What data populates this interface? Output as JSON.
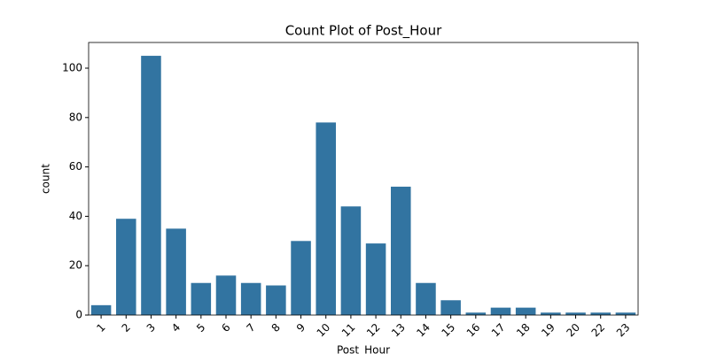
{
  "chart_data": {
    "type": "bar",
    "title": "Count Plot of Post_Hour",
    "xlabel": "Post_Hour",
    "ylabel": "count",
    "categories": [
      "1",
      "2",
      "3",
      "4",
      "5",
      "6",
      "7",
      "8",
      "9",
      "10",
      "11",
      "12",
      "13",
      "14",
      "15",
      "16",
      "17",
      "18",
      "19",
      "20",
      "22",
      "23"
    ],
    "values": [
      4,
      39,
      105,
      35,
      13,
      16,
      13,
      12,
      30,
      78,
      44,
      29,
      52,
      13,
      6,
      1,
      3,
      3,
      1,
      1,
      1,
      1
    ],
    "color": "#3274a1",
    "ylim": [
      0,
      110.4
    ],
    "yticks": [
      0,
      20,
      40,
      60,
      80,
      100
    ],
    "grid": false
  }
}
